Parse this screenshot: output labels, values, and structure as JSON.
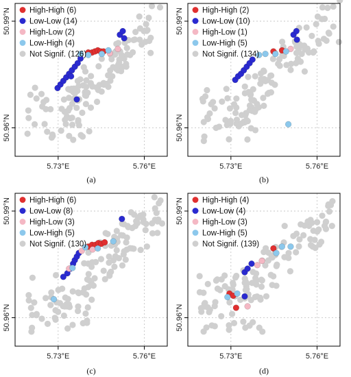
{
  "colors": {
    "high_high": "#e03030",
    "low_low": "#2a2ad0",
    "high_low": "#f4b8c4",
    "low_high": "#8cc8ec",
    "not_signif": "#cfcfcf"
  },
  "chart_data": [
    {
      "type": "scatter",
      "panel_label": "(a)",
      "xlim": [
        5.715,
        5.768
      ],
      "ylim": [
        50.952,
        50.995
      ],
      "xticks": [
        5.73,
        5.76
      ],
      "xtick_labels": [
        "5.73°E",
        "5.76°E"
      ],
      "yticks": [
        50.96,
        50.99
      ],
      "ytick_labels": [
        "50.96°N",
        "50.99°N"
      ],
      "grid": true,
      "legend_position": "top-left",
      "series": [
        {
          "name": "High-High (6)",
          "color_key": "high_high",
          "points": [
            [
              5.7405,
              50.9812
            ],
            [
              5.7418,
              50.9812
            ],
            [
              5.7428,
              50.9815
            ],
            [
              5.7438,
              50.9818
            ],
            [
              5.7448,
              50.9815
            ],
            [
              5.7458,
              50.9815
            ]
          ]
        },
        {
          "name": "Low-Low (14)",
          "color_key": "low_low",
          "points": [
            [
              5.7298,
              50.9712
            ],
            [
              5.7308,
              50.9722
            ],
            [
              5.7318,
              50.9732
            ],
            [
              5.7328,
              50.9742
            ],
            [
              5.7338,
              50.9752
            ],
            [
              5.7348,
              50.9762
            ],
            [
              5.7358,
              50.9772
            ],
            [
              5.7368,
              50.9782
            ],
            [
              5.7378,
              50.9795
            ],
            [
              5.7345,
              50.9745
            ],
            [
              5.7365,
              50.968
            ],
            [
              5.7515,
              50.9862
            ],
            [
              5.7525,
              50.9872
            ],
            [
              5.753,
              50.9852
            ]
          ]
        },
        {
          "name": "High-Low (2)",
          "color_key": "high_low",
          "points": [
            [
              5.748,
              50.981
            ],
            [
              5.7508,
              50.9822
            ]
          ]
        },
        {
          "name": "Low-High (4)",
          "color_key": "low_high",
          "points": [
            [
              5.7378,
              50.9808
            ],
            [
              5.7405,
              50.9805
            ],
            [
              5.7452,
              50.9808
            ],
            [
              5.7475,
              50.9818
            ]
          ]
        },
        {
          "name": "Not Signif. (126)",
          "color_key": "not_signif",
          "points": []
        }
      ]
    },
    {
      "type": "scatter",
      "panel_label": "(b)",
      "xlim": [
        5.715,
        5.768
      ],
      "ylim": [
        50.952,
        50.995
      ],
      "xticks": [
        5.73,
        5.76
      ],
      "xtick_labels": [
        "5.73°E",
        "5.76°E"
      ],
      "yticks": [
        50.96,
        50.99
      ],
      "ytick_labels": [
        "50.96°N",
        "50.99°N"
      ],
      "grid": true,
      "legend_position": "top-left",
      "series": [
        {
          "name": "High-High (2)",
          "color_key": "high_high",
          "points": [
            [
              5.7448,
              50.9815
            ],
            [
              5.7478,
              50.9818
            ]
          ]
        },
        {
          "name": "Low-Low (10)",
          "color_key": "low_low",
          "points": [
            [
              5.7315,
              50.9735
            ],
            [
              5.7325,
              50.9745
            ],
            [
              5.7335,
              50.9752
            ],
            [
              5.7345,
              50.9762
            ],
            [
              5.7355,
              50.9772
            ],
            [
              5.7365,
              50.9782
            ],
            [
              5.7375,
              50.9792
            ],
            [
              5.7518,
              50.9862
            ],
            [
              5.7528,
              50.9872
            ],
            [
              5.753,
              50.9848
            ]
          ]
        },
        {
          "name": "High-Low (1)",
          "color_key": "high_low",
          "points": [
            [
              5.7508,
              50.9822
            ]
          ]
        },
        {
          "name": "Low-High (5)",
          "color_key": "low_high",
          "points": [
            [
              5.7398,
              50.9805
            ],
            [
              5.742,
              50.9808
            ],
            [
              5.7455,
              50.9808
            ],
            [
              5.7492,
              50.9815
            ],
            [
              5.75,
              50.961
            ]
          ]
        },
        {
          "name": "Not Signif. (134)",
          "color_key": "not_signif",
          "points": []
        }
      ]
    },
    {
      "type": "scatter",
      "panel_label": "(c)",
      "xlim": [
        5.715,
        5.768
      ],
      "ylim": [
        50.952,
        50.995
      ],
      "xticks": [
        5.73,
        5.76
      ],
      "xtick_labels": [
        "5.73°E",
        "5.76°E"
      ],
      "yticks": [
        50.96,
        50.99
      ],
      "ytick_labels": [
        "50.96°N",
        "50.99°N"
      ],
      "grid": true,
      "legend_position": "top-left",
      "series": [
        {
          "name": "High-High (6)",
          "color_key": "high_high",
          "points": [
            [
              5.7405,
              50.98
            ],
            [
              5.7418,
              50.9805
            ],
            [
              5.743,
              50.9805
            ],
            [
              5.744,
              50.981
            ],
            [
              5.745,
              50.9808
            ],
            [
              5.7462,
              50.9812
            ]
          ]
        },
        {
          "name": "Low-Low (8)",
          "color_key": "low_low",
          "points": [
            [
              5.7318,
              50.9715
            ],
            [
              5.7332,
              50.9725
            ],
            [
              5.7342,
              50.9738
            ],
            [
              5.7352,
              50.9752
            ],
            [
              5.7358,
              50.9762
            ],
            [
              5.7365,
              50.9772
            ],
            [
              5.7372,
              50.9782
            ],
            [
              5.7522,
              50.9878
            ]
          ]
        },
        {
          "name": "High-Low (3)",
          "color_key": "high_low",
          "points": [
            [
              5.7338,
              50.9738
            ],
            [
              5.7382,
              50.9788
            ],
            [
              5.742,
              50.9792
            ]
          ]
        },
        {
          "name": "Low-High (5)",
          "color_key": "low_high",
          "points": [
            [
              5.7285,
              50.9652
            ],
            [
              5.735,
              50.974
            ],
            [
              5.7395,
              50.9798
            ],
            [
              5.7438,
              50.9795
            ],
            [
              5.7492,
              50.9815
            ]
          ]
        },
        {
          "name": "Not Signif. (130)",
          "color_key": "not_signif",
          "points": []
        }
      ]
    },
    {
      "type": "scatter",
      "panel_label": "(d)",
      "xlim": [
        5.715,
        5.768
      ],
      "ylim": [
        50.952,
        50.995
      ],
      "xticks": [
        5.73,
        5.76
      ],
      "xtick_labels": [
        "5.73°E",
        "5.76°E"
      ],
      "yticks": [
        50.96,
        50.99
      ],
      "ytick_labels": [
        "50.96°N",
        "50.99°N"
      ],
      "grid": true,
      "legend_position": "top-left",
      "series": [
        {
          "name": "High-High (4)",
          "color_key": "high_high",
          "points": [
            [
              5.7295,
              50.9668
            ],
            [
              5.7308,
              50.9662
            ],
            [
              5.7318,
              50.9628
            ],
            [
              5.7448,
              50.9795
            ]
          ]
        },
        {
          "name": "Low-Low (4)",
          "color_key": "low_low",
          "points": [
            [
              5.7348,
              50.9728
            ],
            [
              5.7358,
              50.9738
            ],
            [
              5.7372,
              50.9752
            ],
            [
              5.7348,
              50.966
            ]
          ]
        },
        {
          "name": "High-Low (3)",
          "color_key": "high_low",
          "points": [
            [
              5.7392,
              50.9748
            ],
            [
              5.7408,
              50.976
            ],
            [
              5.7358,
              50.9632
            ]
          ]
        },
        {
          "name": "Low-High (5)",
          "color_key": "low_high",
          "points": [
            [
              5.7288,
              50.9658
            ],
            [
              5.7322,
              50.9668
            ],
            [
              5.7458,
              50.9782
            ],
            [
              5.7478,
              50.98
            ],
            [
              5.7508,
              50.98
            ]
          ]
        },
        {
          "name": "Not Signif. (139)",
          "color_key": "not_signif",
          "points": []
        }
      ]
    }
  ]
}
